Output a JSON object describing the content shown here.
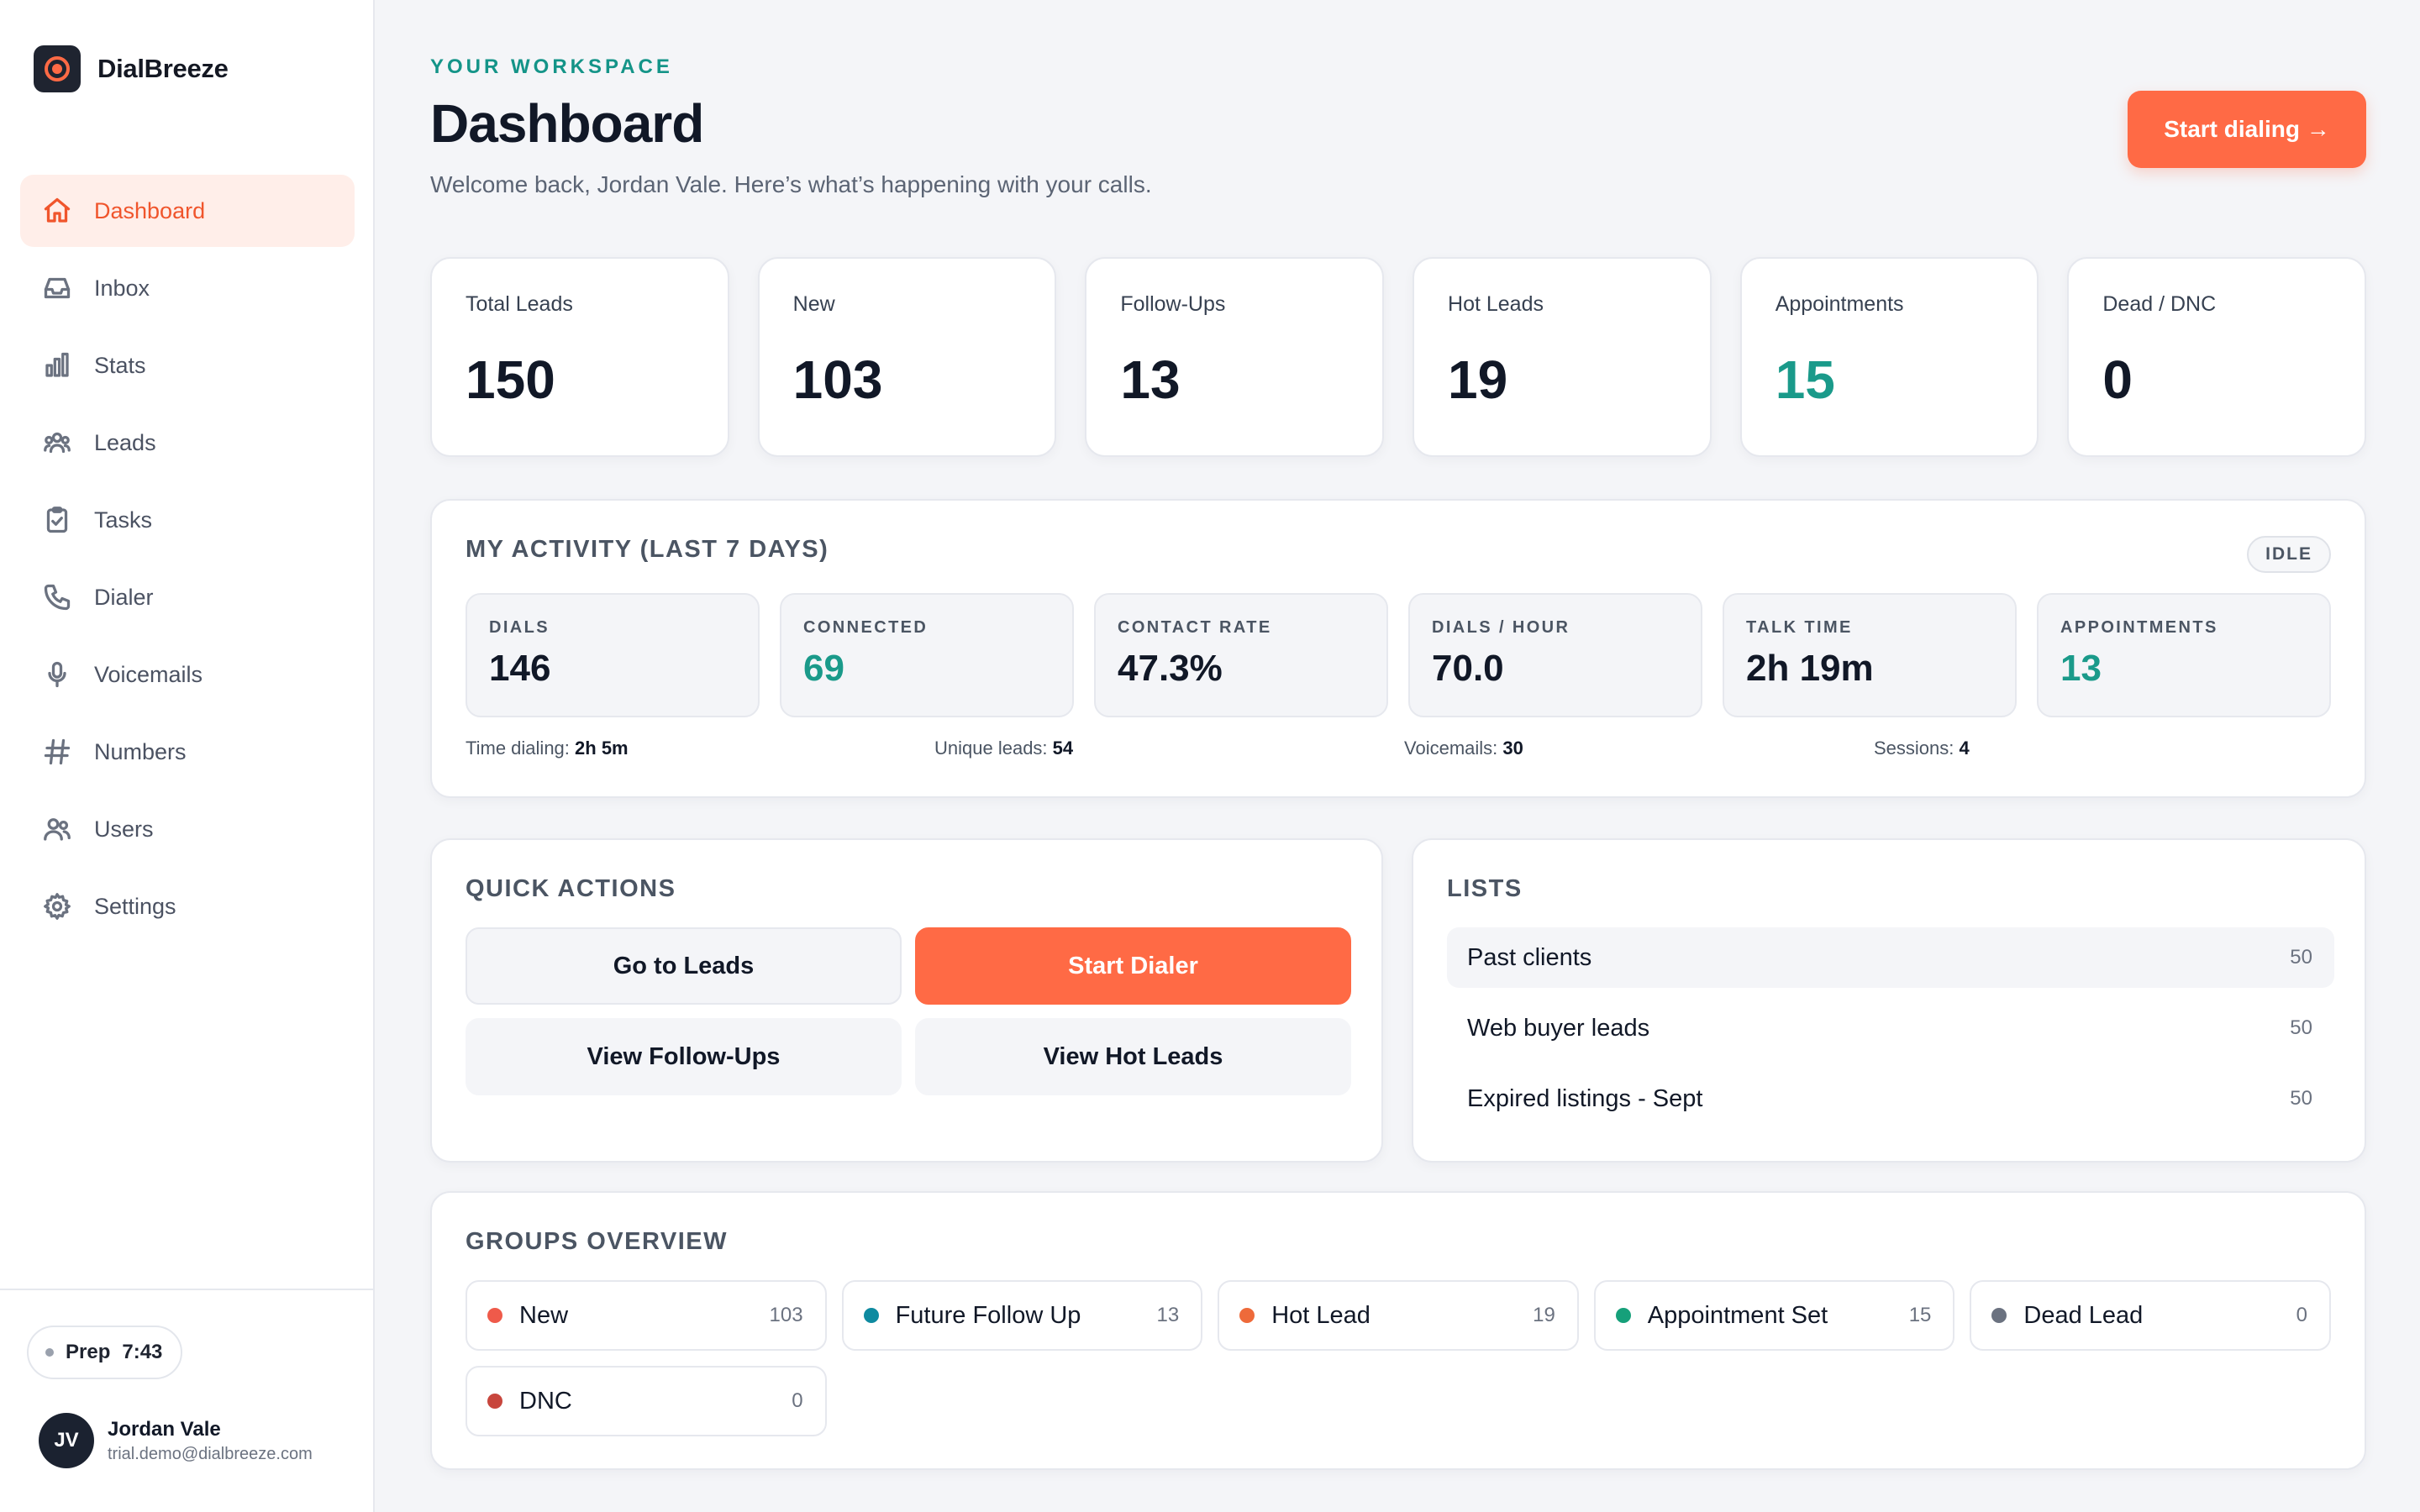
{
  "app": {
    "name": "DialBreeze"
  },
  "sidebar": {
    "items": [
      {
        "label": "Dashboard",
        "icon": "home-icon",
        "active": true
      },
      {
        "label": "Inbox",
        "icon": "inbox-icon"
      },
      {
        "label": "Stats",
        "icon": "bar-chart-icon"
      },
      {
        "label": "Leads",
        "icon": "people-icon"
      },
      {
        "label": "Tasks",
        "icon": "clipboard-check-icon"
      },
      {
        "label": "Dialer",
        "icon": "phone-icon"
      },
      {
        "label": "Voicemails",
        "icon": "microphone-icon"
      },
      {
        "label": "Numbers",
        "icon": "hash-icon"
      },
      {
        "label": "Users",
        "icon": "users-icon"
      },
      {
        "label": "Settings",
        "icon": "gear-icon"
      }
    ],
    "prep": {
      "label": "Prep",
      "time": "7:43"
    },
    "user": {
      "initials": "JV",
      "name": "Jordan Vale",
      "email": "trial.demo@dialbreeze.com"
    }
  },
  "header": {
    "eyebrow": "YOUR WORKSPACE",
    "title": "Dashboard",
    "subtitle": "Welcome back, Jordan Vale. Here’s what’s happening with your calls.",
    "cta_label": "Start dialing →"
  },
  "stats": [
    {
      "label": "Total Leads",
      "value": "150"
    },
    {
      "label": "New",
      "value": "103"
    },
    {
      "label": "Follow-Ups",
      "value": "13"
    },
    {
      "label": "Hot Leads",
      "value": "19"
    },
    {
      "label": "Appointments",
      "value": "15",
      "accent": true
    },
    {
      "label": "Dead / DNC",
      "value": "0"
    }
  ],
  "activity": {
    "title": "MY ACTIVITY (LAST 7 DAYS)",
    "status": "IDLE",
    "metrics": [
      {
        "label": "DIALS",
        "value": "146"
      },
      {
        "label": "CONNECTED",
        "value": "69",
        "accent": true
      },
      {
        "label": "CONTACT RATE",
        "value": "47.3%"
      },
      {
        "label": "DIALS / HOUR",
        "value": "70.0"
      },
      {
        "label": "TALK TIME",
        "value": "2h 19m"
      },
      {
        "label": "APPOINTMENTS",
        "value": "13",
        "accent": true
      }
    ],
    "footer": [
      {
        "label": "Time dialing:",
        "value": "2h 5m"
      },
      {
        "label": "Unique leads:",
        "value": "54"
      },
      {
        "label": "Voicemails:",
        "value": "30"
      },
      {
        "label": "Sessions:",
        "value": "4"
      }
    ]
  },
  "quick_actions": {
    "title": "QUICK ACTIONS",
    "buttons": [
      {
        "label": "Go to Leads",
        "style": "outline"
      },
      {
        "label": "Start Dialer",
        "style": "primary"
      },
      {
        "label": "View Follow-Ups",
        "style": "flat"
      },
      {
        "label": "View Hot Leads",
        "style": "flat"
      }
    ]
  },
  "lists": {
    "title": "LISTS",
    "rows": [
      {
        "name": "Past clients",
        "count": "50"
      },
      {
        "name": "Web buyer leads",
        "count": "50"
      },
      {
        "name": "Expired listings - Sept",
        "count": "50"
      }
    ]
  },
  "groups": {
    "title": "GROUPS OVERVIEW",
    "items": [
      {
        "name": "New",
        "count": "103",
        "color": "#ef5a4a"
      },
      {
        "name": "Future Follow Up",
        "count": "13",
        "color": "#0e8aa0"
      },
      {
        "name": "Hot Lead",
        "count": "19",
        "color": "#ee6a3a"
      },
      {
        "name": "Appointment Set",
        "count": "15",
        "color": "#16a07a"
      },
      {
        "name": "Dead Lead",
        "count": "0",
        "color": "#6b7280"
      },
      {
        "name": "DNC",
        "count": "0",
        "color": "#c8463d"
      }
    ]
  },
  "colors": {
    "accent": "#ff6a45",
    "teal": "#1a9a8a",
    "sidebar_active_bg": "#ffeee9"
  }
}
